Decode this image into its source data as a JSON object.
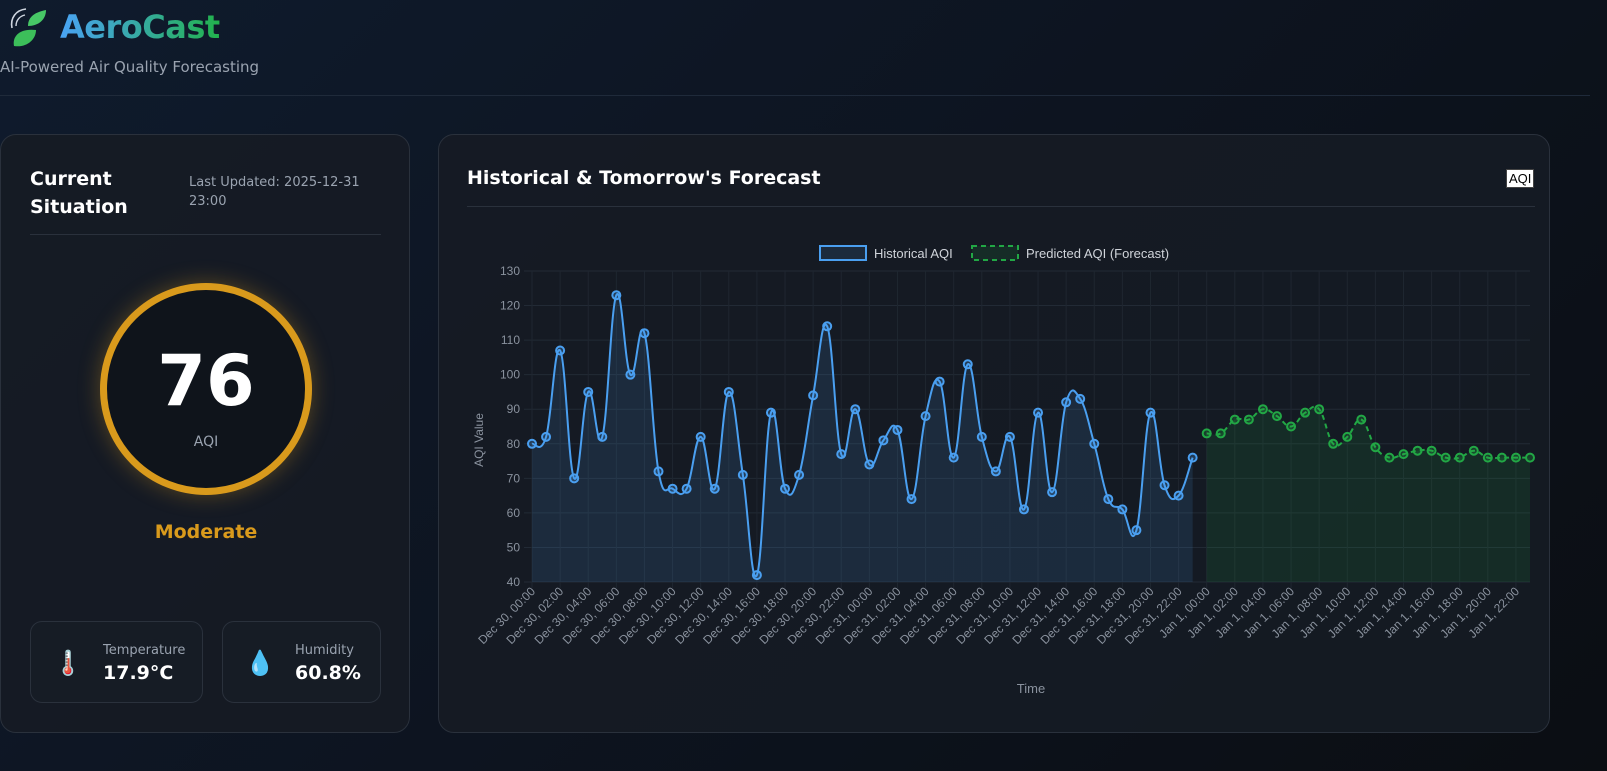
{
  "header": {
    "title": "AeroCast",
    "subtitle": "AI-Powered Air Quality Forecasting"
  },
  "current": {
    "title": "Current Situation",
    "last_updated": "Last Updated: 2025-12-31 23:00",
    "aqi": "76",
    "aqi_unit": "AQI",
    "status": "Moderate",
    "status_color": "#d99a1c",
    "stats": [
      {
        "icon": "thermometer-icon",
        "label": "Temperature",
        "value": "17.9°C"
      },
      {
        "icon": "droplet-icon",
        "label": "Humidity",
        "value": "60.8%"
      }
    ]
  },
  "chart_panel": {
    "title": "Historical & Tomorrow's Forecast",
    "toggle_label": "AQI"
  },
  "chart_data": {
    "type": "line",
    "xlabel": "Time",
    "ylabel": "AQI Value",
    "ylim": [
      40,
      130
    ],
    "yticks": [
      40,
      50,
      60,
      70,
      80,
      90,
      100,
      110,
      120,
      130
    ],
    "grid": true,
    "legend": "top",
    "series": [
      {
        "name": "Historical AQI",
        "color": "#4a9ff0",
        "style": "solid",
        "start": "Dec 30, 00:00",
        "values": [
          80,
          82,
          107,
          70,
          95,
          82,
          123,
          100,
          112,
          72,
          67,
          67,
          82,
          67,
          95,
          71,
          42,
          89,
          67,
          71,
          94,
          114,
          77,
          90,
          74,
          81,
          84,
          64,
          88,
          98,
          76,
          103,
          82,
          72,
          82,
          61,
          89,
          66,
          92,
          93,
          80,
          64,
          61,
          55,
          89,
          68,
          65,
          76
        ]
      },
      {
        "name": "Predicted AQI (Forecast)",
        "color": "#22a745",
        "style": "dashed",
        "start": "Jan 1, 00:00",
        "values": [
          83,
          83,
          87,
          87,
          90,
          88,
          85,
          89,
          90,
          80,
          82,
          87,
          79,
          76,
          77,
          78,
          78,
          76,
          76,
          78,
          76,
          76,
          76,
          76
        ]
      }
    ],
    "xticks": [
      "Dec 30, 00:00",
      "Dec 30, 02:00",
      "Dec 30, 04:00",
      "Dec 30, 06:00",
      "Dec 30, 08:00",
      "Dec 30, 10:00",
      "Dec 30, 12:00",
      "Dec 30, 14:00",
      "Dec 30, 16:00",
      "Dec 30, 18:00",
      "Dec 30, 20:00",
      "Dec 30, 22:00",
      "Dec 31, 00:00",
      "Dec 31, 02:00",
      "Dec 31, 04:00",
      "Dec 31, 06:00",
      "Dec 31, 08:00",
      "Dec 31, 10:00",
      "Dec 31, 12:00",
      "Dec 31, 14:00",
      "Dec 31, 16:00",
      "Dec 31, 18:00",
      "Dec 31, 20:00",
      "Dec 31, 22:00",
      "Jan 1, 00:00",
      "Jan 1, 02:00",
      "Jan 1, 04:00",
      "Jan 1, 06:00",
      "Jan 1, 08:00",
      "Jan 1, 10:00",
      "Jan 1, 12:00",
      "Jan 1, 14:00",
      "Jan 1, 16:00",
      "Jan 1, 18:00",
      "Jan 1, 20:00",
      "Jan 1, 22:00"
    ]
  }
}
